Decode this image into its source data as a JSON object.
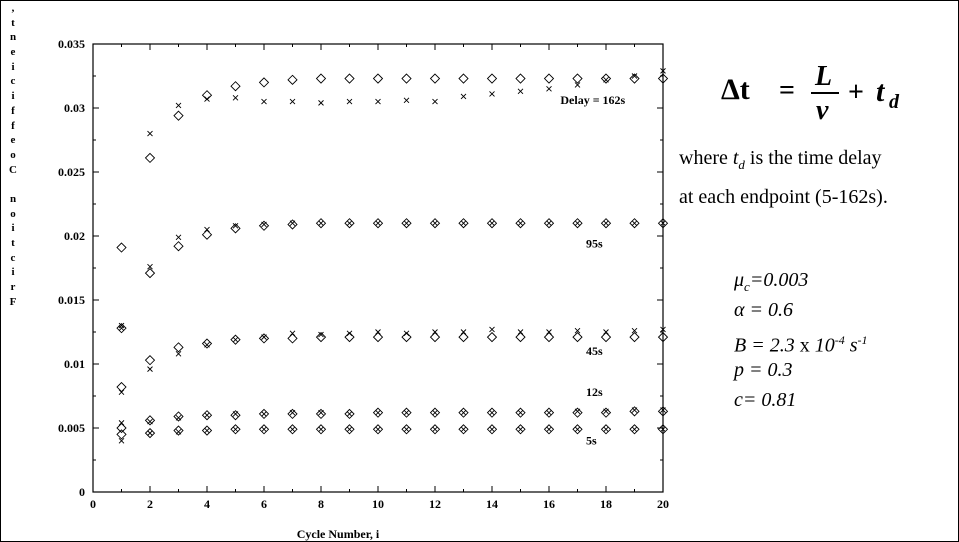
{
  "chart_data": {
    "type": "scatter",
    "xlabel": "Cycle Number, i",
    "ylabel": "Friction coefficient,",
    "xlim": [
      0,
      20
    ],
    "ylim": [
      0,
      0.035
    ],
    "xticks": [
      0,
      2,
      4,
      6,
      8,
      10,
      12,
      14,
      16,
      18,
      20
    ],
    "yticks": [
      0,
      0.005,
      0.01,
      0.015,
      0.02,
      0.025,
      0.03,
      0.035
    ],
    "ytick_labels": [
      "0",
      "0.005",
      "0.01",
      "0.015",
      "0.02",
      "0.025",
      "0.03",
      "0.035"
    ],
    "grid": false,
    "annotations": [
      {
        "text": "Delay = 162s",
        "x": 16.4,
        "y": 0.0303
      },
      {
        "text": "95s",
        "x": 17.3,
        "y": 0.0191
      },
      {
        "text": "45s",
        "x": 17.3,
        "y": 0.0107
      },
      {
        "text": "12s",
        "x": 17.3,
        "y": 0.0075
      },
      {
        "text": "5s",
        "x": 17.3,
        "y": 0.0037
      }
    ],
    "x": [
      1,
      2,
      3,
      4,
      5,
      6,
      7,
      8,
      9,
      10,
      11,
      12,
      13,
      14,
      15,
      16,
      17,
      18,
      19,
      20
    ],
    "series": [
      {
        "marker": "diamond",
        "label": "Delay = 162s",
        "values": [
          0.0191,
          0.0261,
          0.0294,
          0.031,
          0.0317,
          0.032,
          0.0322,
          0.0323,
          0.0323,
          0.0323,
          0.0323,
          0.0323,
          0.0323,
          0.0323,
          0.0323,
          0.0323,
          0.0323,
          0.0323,
          0.0323,
          0.0323
        ]
      },
      {
        "marker": "cross",
        "label": "Delay = 162s",
        "values": [
          0.013,
          0.028,
          0.0302,
          0.0307,
          0.0308,
          0.0305,
          0.0305,
          0.0304,
          0.0305,
          0.0305,
          0.0306,
          0.0305,
          0.0309,
          0.0311,
          0.0313,
          0.0315,
          0.0318,
          0.0322,
          0.0325,
          0.0329
        ]
      },
      {
        "marker": "diamond",
        "label": "95s",
        "values": [
          0.0082,
          0.0171,
          0.0192,
          0.0201,
          0.0206,
          0.0208,
          0.0209,
          0.021,
          0.021,
          0.021,
          0.021,
          0.021,
          0.021,
          0.021,
          0.021,
          0.021,
          0.021,
          0.021,
          0.021,
          0.021
        ]
      },
      {
        "marker": "cross",
        "label": "95s",
        "values": [
          0.0078,
          0.0176,
          0.0199,
          0.0205,
          0.0208,
          0.0209,
          0.021,
          0.021,
          0.021,
          0.021,
          0.021,
          0.021,
          0.021,
          0.021,
          0.021,
          0.021,
          0.021,
          0.021,
          0.021,
          0.021
        ]
      },
      {
        "marker": "diamond",
        "label": "45s",
        "values": [
          0.0128,
          0.0103,
          0.0113,
          0.0116,
          0.0119,
          0.012,
          0.012,
          0.0121,
          0.0121,
          0.0121,
          0.0121,
          0.0121,
          0.0121,
          0.0121,
          0.0121,
          0.0121,
          0.0121,
          0.0121,
          0.0121,
          0.0121
        ]
      },
      {
        "marker": "cross",
        "label": "45s",
        "values": [
          0.0128,
          0.0096,
          0.0108,
          0.0115,
          0.0119,
          0.0121,
          0.0124,
          0.0123,
          0.0124,
          0.0125,
          0.0124,
          0.0125,
          0.0125,
          0.0127,
          0.0125,
          0.0125,
          0.0126,
          0.0125,
          0.0126,
          0.0127
        ]
      },
      {
        "marker": "diamond",
        "label": "12s",
        "values": [
          0.005,
          0.0056,
          0.0059,
          0.006,
          0.006,
          0.0061,
          0.0061,
          0.0061,
          0.0061,
          0.0062,
          0.0062,
          0.0062,
          0.0062,
          0.0062,
          0.0062,
          0.0062,
          0.0062,
          0.0062,
          0.0063,
          0.0063
        ]
      },
      {
        "marker": "cross",
        "label": "12s",
        "values": [
          0.0054,
          0.0055,
          0.0058,
          0.006,
          0.0061,
          0.0061,
          0.0062,
          0.0062,
          0.0061,
          0.0062,
          0.0062,
          0.0062,
          0.0062,
          0.0062,
          0.0062,
          0.0062,
          0.0063,
          0.0063,
          0.0064,
          0.0064
        ]
      },
      {
        "marker": "diamond",
        "label": "5s",
        "values": [
          0.0045,
          0.0046,
          0.0048,
          0.0048,
          0.0049,
          0.0049,
          0.0049,
          0.0049,
          0.0049,
          0.0049,
          0.0049,
          0.0049,
          0.0049,
          0.0049,
          0.0049,
          0.0049,
          0.0049,
          0.0049,
          0.0049,
          0.0049
        ]
      },
      {
        "marker": "cross",
        "label": "5s",
        "values": [
          0.004,
          0.0046,
          0.0047,
          0.0048,
          0.0049,
          0.0049,
          0.0049,
          0.0049,
          0.0049,
          0.0049,
          0.0049,
          0.0049,
          0.0049,
          0.0049,
          0.0049,
          0.0049,
          0.0049,
          0.0049,
          0.0049,
          0.0049
        ]
      }
    ]
  },
  "formula": {
    "lhs": "Δt",
    "equals": "=",
    "numerator": "L",
    "denominator": "v",
    "plus": "+",
    "term": "t",
    "term_subscript": "d"
  },
  "note": {
    "prefix": "where ",
    "var": "t",
    "var_subscript": "d",
    "suffix": " is the time delay",
    "line2": "at each endpoint (5-162s)."
  },
  "params": {
    "mu": "μ",
    "mu_sub": "c",
    "mu_value": "=0.003",
    "alpha": "α = 0.6",
    "B_prefix": "B = 2.3",
    "B_times": " x ",
    "B_base": "10",
    "B_exp": "-4",
    "B_unit": " s",
    "B_unit_exp": "-1",
    "p": "p = 0.3",
    "c": "c= 0.81"
  }
}
